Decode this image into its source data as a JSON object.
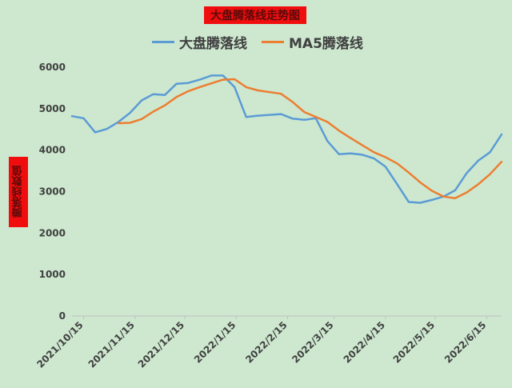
{
  "chart_data": {
    "type": "line",
    "title": "大盘腾落线走势图",
    "ylabel": "腾落线数值",
    "xlabel": "",
    "ylim": [
      0,
      6000
    ],
    "yticks": [
      0,
      1000,
      2000,
      3000,
      4000,
      5000,
      6000
    ],
    "xticks": [
      "2021/10/15",
      "2021/11/15",
      "2021/12/15",
      "2022/1/15",
      "2022/2/15",
      "2022/3/15",
      "2022/4/15",
      "2022/5/15",
      "2022/6/15"
    ],
    "grid": false,
    "legend_position": "top",
    "series": [
      {
        "name": "大盘腾落线",
        "color": "#5b9bd5",
        "points": [
          [
            "2021/10/08",
            4820
          ],
          [
            "2021/10/15",
            4770
          ],
          [
            "2021/10/22",
            4430
          ],
          [
            "2021/10/29",
            4510
          ],
          [
            "2021/11/05",
            4680
          ],
          [
            "2021/11/12",
            4900
          ],
          [
            "2021/11/19",
            5200
          ],
          [
            "2021/11/26",
            5350
          ],
          [
            "2021/12/03",
            5330
          ],
          [
            "2021/12/10",
            5600
          ],
          [
            "2021/12/17",
            5620
          ],
          [
            "2021/12/24",
            5700
          ],
          [
            "2021/12/31",
            5800
          ],
          [
            "2022/01/07",
            5800
          ],
          [
            "2022/01/14",
            5520
          ],
          [
            "2022/01/21",
            4800
          ],
          [
            "2022/01/28",
            4830
          ],
          [
            "2022/02/11",
            4870
          ],
          [
            "2022/02/18",
            4760
          ],
          [
            "2022/02/25",
            4730
          ],
          [
            "2022/03/04",
            4770
          ],
          [
            "2022/03/11",
            4220
          ],
          [
            "2022/03/18",
            3900
          ],
          [
            "2022/03/25",
            3920
          ],
          [
            "2022/04/01",
            3890
          ],
          [
            "2022/04/08",
            3800
          ],
          [
            "2022/04/15",
            3600
          ],
          [
            "2022/04/22",
            3180
          ],
          [
            "2022/04/29",
            2750
          ],
          [
            "2022/05/06",
            2730
          ],
          [
            "2022/05/13",
            2800
          ],
          [
            "2022/05/20",
            2880
          ],
          [
            "2022/05/27",
            3030
          ],
          [
            "2022/06/03",
            3450
          ],
          [
            "2022/06/10",
            3750
          ],
          [
            "2022/06/17",
            3950
          ],
          [
            "2022/06/24",
            4380
          ]
        ]
      },
      {
        "name": "MA5腾落线",
        "color": "#ed7d31",
        "points": [
          [
            "2021/11/05",
            4650
          ],
          [
            "2021/11/12",
            4660
          ],
          [
            "2021/11/19",
            4750
          ],
          [
            "2021/11/26",
            4930
          ],
          [
            "2021/12/03",
            5080
          ],
          [
            "2021/12/10",
            5280
          ],
          [
            "2021/12/17",
            5420
          ],
          [
            "2021/12/24",
            5520
          ],
          [
            "2021/12/31",
            5610
          ],
          [
            "2022/01/07",
            5700
          ],
          [
            "2022/01/14",
            5710
          ],
          [
            "2022/01/21",
            5520
          ],
          [
            "2022/01/28",
            5440
          ],
          [
            "2022/02/11",
            5360
          ],
          [
            "2022/02/18",
            5160
          ],
          [
            "2022/02/25",
            4920
          ],
          [
            "2022/03/04",
            4800
          ],
          [
            "2022/03/11",
            4680
          ],
          [
            "2022/03/18",
            4470
          ],
          [
            "2022/03/25",
            4290
          ],
          [
            "2022/04/01",
            4120
          ],
          [
            "2022/04/08",
            3950
          ],
          [
            "2022/04/15",
            3830
          ],
          [
            "2022/04/22",
            3680
          ],
          [
            "2022/04/29",
            3460
          ],
          [
            "2022/05/06",
            3220
          ],
          [
            "2022/05/13",
            3020
          ],
          [
            "2022/05/20",
            2880
          ],
          [
            "2022/05/27",
            2840
          ],
          [
            "2022/06/03",
            2980
          ],
          [
            "2022/06/10",
            3180
          ],
          [
            "2022/06/17",
            3420
          ],
          [
            "2022/06/24",
            3720
          ]
        ]
      }
    ]
  }
}
